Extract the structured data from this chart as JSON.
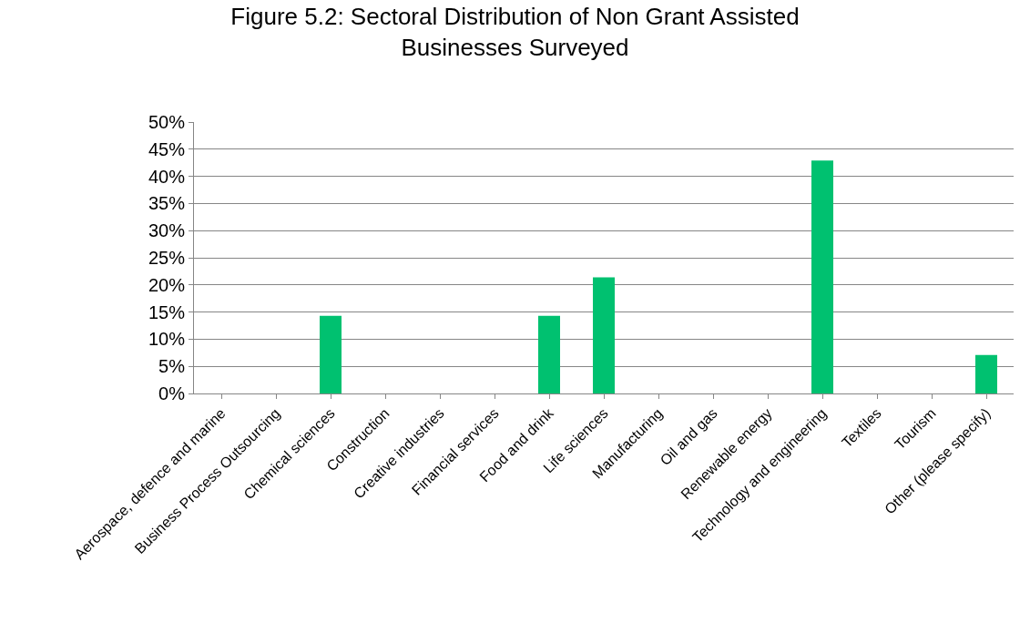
{
  "chart_data": {
    "type": "bar",
    "title": "Figure 5.2: Sectoral Distribution of Non Grant Assisted\nBusinesses Surveyed",
    "categories": [
      "Aerospace, defence and marine",
      "Business Process Outsourcing",
      "Chemical sciences",
      "Construction",
      "Creative industries",
      "Financial services",
      "Food and drink",
      "Life sciences",
      "Manufacturing",
      "Oil and gas",
      "Renewable energy",
      "Technology and engineering",
      "Textiles",
      "Tourism",
      "Other (please specify)"
    ],
    "values": [
      0,
      0,
      14.3,
      0,
      0,
      0,
      14.3,
      21.4,
      0,
      0,
      0,
      42.9,
      0,
      0,
      7.1
    ],
    "color": "#00c170",
    "ylim": [
      0,
      50
    ],
    "yticks": [
      {
        "value": 0,
        "label": "0%"
      },
      {
        "value": 5,
        "label": "5%"
      },
      {
        "value": 10,
        "label": "10%"
      },
      {
        "value": 15,
        "label": "15%"
      },
      {
        "value": 20,
        "label": "20%"
      },
      {
        "value": 25,
        "label": "25%"
      },
      {
        "value": 30,
        "label": "30%"
      },
      {
        "value": 35,
        "label": "35%"
      },
      {
        "value": 40,
        "label": "40%"
      },
      {
        "value": 45,
        "label": "45%"
      },
      {
        "value": 50,
        "label": "50%"
      }
    ],
    "grid": "y",
    "legend": false
  }
}
